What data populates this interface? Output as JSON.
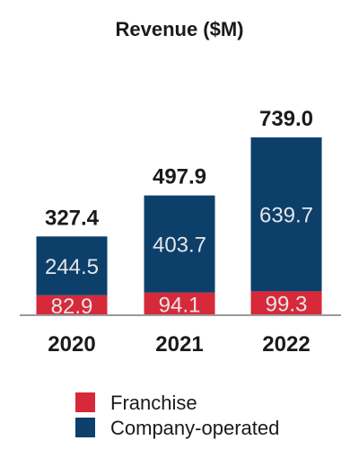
{
  "chart_data": {
    "type": "bar",
    "stacked": true,
    "title": "Revenue ($M)",
    "categories": [
      "2020",
      "2021",
      "2022"
    ],
    "series": [
      {
        "name": "Franchise",
        "color": "#d6293a",
        "values": [
          82.9,
          94.1,
          99.3
        ],
        "labels": [
          "82.9",
          "94.1",
          "99.3"
        ]
      },
      {
        "name": "Company-operated",
        "color": "#0d3f6b",
        "values": [
          244.5,
          403.7,
          639.7
        ],
        "labels": [
          "244.5",
          "403.7",
          "639.7"
        ]
      }
    ],
    "totals": [
      327.4,
      497.9,
      739.0
    ],
    "total_labels": [
      "327.4",
      "497.9",
      "739.0"
    ],
    "ylim": [
      0,
      739.0
    ],
    "grid": false,
    "legend": "bottom"
  }
}
